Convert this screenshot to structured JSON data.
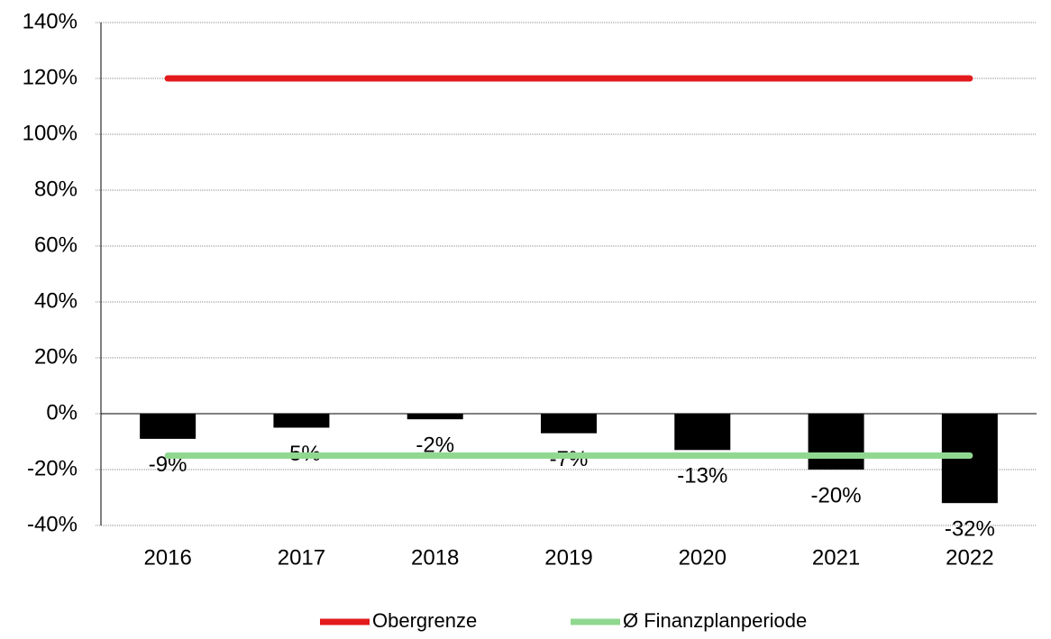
{
  "chart_data": {
    "type": "bar",
    "categories": [
      "2016",
      "2017",
      "2018",
      "2019",
      "2020",
      "2021",
      "2022"
    ],
    "series": [
      {
        "type": "bar",
        "color": "#000000",
        "values": [
          -9,
          -5,
          -2,
          -7,
          -13,
          -20,
          -32
        ],
        "value_labels": [
          "-9%",
          "-5%",
          "-2%",
          "-7%",
          "-13%",
          "-20%",
          "-32%"
        ]
      },
      {
        "type": "line",
        "name": "Obergrenze",
        "color": "#e31a1c",
        "values": [
          120,
          120,
          120,
          120,
          120,
          120,
          120
        ]
      },
      {
        "type": "line",
        "name": "Ø Finanzplanperiode",
        "color": "#90d890",
        "values": [
          -15,
          -15,
          -15,
          -15,
          -15,
          -15,
          -15
        ]
      }
    ],
    "ylim": [
      -40,
      140
    ],
    "yticks": [
      {
        "value": -40,
        "label": "-40%"
      },
      {
        "value": -20,
        "label": "-20%"
      },
      {
        "value": 0,
        "label": "0%"
      },
      {
        "value": 20,
        "label": "20%"
      },
      {
        "value": 40,
        "label": "40%"
      },
      {
        "value": 60,
        "label": "60%"
      },
      {
        "value": 80,
        "label": "80%"
      },
      {
        "value": 100,
        "label": "100%"
      },
      {
        "value": 120,
        "label": "120%"
      },
      {
        "value": 140,
        "label": "140%"
      }
    ],
    "grid": true,
    "legend": "bottom"
  }
}
